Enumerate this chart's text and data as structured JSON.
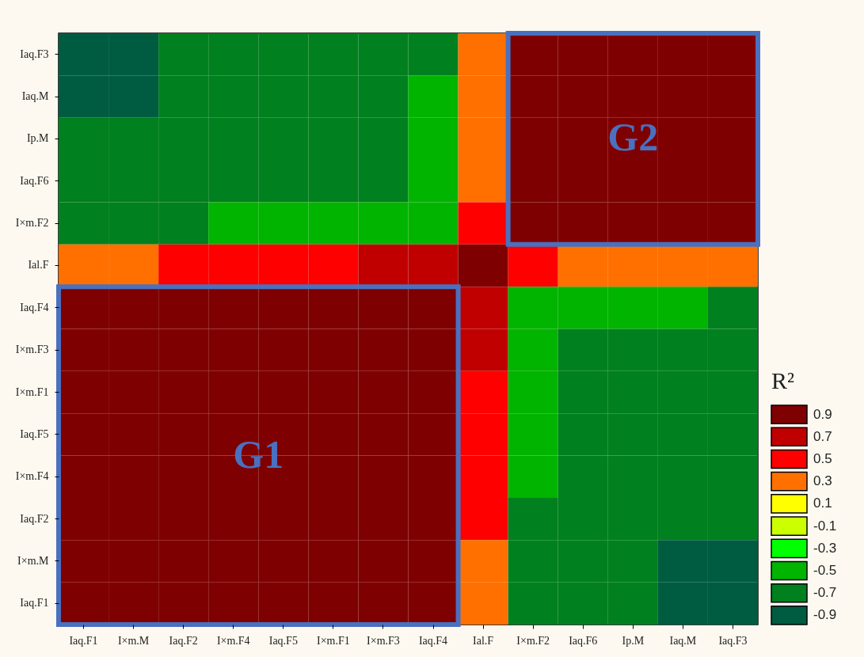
{
  "chart_data": {
    "type": "heatmap",
    "categories": [
      "Iaq.F1",
      "I×m.M",
      "Iaq.F2",
      "I×m.F4",
      "Iaq.F5",
      "I×m.F1",
      "I×m.F3",
      "Iaq.F4",
      "Ial.F",
      "I×m.F2",
      "Iaq.F6",
      "Ip.M",
      "Iaq.M",
      "Iaq.F3"
    ],
    "y_categories": [
      "Iaq.F3",
      "Iaq.M",
      "Ip.M",
      "Iaq.F6",
      "I×m.F2",
      "Ial.F",
      "Iaq.F4",
      "I×m.F3",
      "I×m.F1",
      "Iaq.F5",
      "I×m.F4",
      "Iaq.F2",
      "I×m.M",
      "Iaq.F1"
    ],
    "cells": [
      [
        -0.9,
        -0.9,
        -0.7,
        -0.7,
        -0.7,
        -0.7,
        -0.7,
        -0.7,
        0.3,
        0.9,
        0.9,
        0.9,
        0.9,
        0.9
      ],
      [
        -0.9,
        -0.9,
        -0.7,
        -0.7,
        -0.7,
        -0.7,
        -0.7,
        -0.5,
        0.3,
        0.9,
        0.9,
        0.9,
        0.9,
        0.9
      ],
      [
        -0.7,
        -0.7,
        -0.7,
        -0.7,
        -0.7,
        -0.7,
        -0.7,
        -0.5,
        0.3,
        0.9,
        0.9,
        0.9,
        0.9,
        0.9
      ],
      [
        -0.7,
        -0.7,
        -0.7,
        -0.7,
        -0.7,
        -0.7,
        -0.7,
        -0.5,
        0.3,
        0.9,
        0.9,
        0.9,
        0.9,
        0.9
      ],
      [
        -0.7,
        -0.7,
        -0.7,
        -0.5,
        -0.5,
        -0.5,
        -0.5,
        -0.5,
        0.5,
        0.9,
        0.9,
        0.9,
        0.9,
        0.9
      ],
      [
        0.3,
        0.3,
        0.5,
        0.5,
        0.5,
        0.5,
        0.7,
        0.7,
        0.9,
        0.5,
        0.3,
        0.3,
        0.3,
        0.3
      ],
      [
        0.9,
        0.9,
        0.9,
        0.9,
        0.9,
        0.9,
        0.9,
        0.9,
        0.7,
        -0.5,
        -0.5,
        -0.5,
        -0.5,
        -0.7
      ],
      [
        0.9,
        0.9,
        0.9,
        0.9,
        0.9,
        0.9,
        0.9,
        0.9,
        0.7,
        -0.5,
        -0.7,
        -0.7,
        -0.7,
        -0.7
      ],
      [
        0.9,
        0.9,
        0.9,
        0.9,
        0.9,
        0.9,
        0.9,
        0.9,
        0.5,
        -0.5,
        -0.7,
        -0.7,
        -0.7,
        -0.7
      ],
      [
        0.9,
        0.9,
        0.9,
        0.9,
        0.9,
        0.9,
        0.9,
        0.9,
        0.5,
        -0.5,
        -0.7,
        -0.7,
        -0.7,
        -0.7
      ],
      [
        0.9,
        0.9,
        0.9,
        0.9,
        0.9,
        0.9,
        0.9,
        0.9,
        0.5,
        -0.5,
        -0.7,
        -0.7,
        -0.7,
        -0.7
      ],
      [
        0.9,
        0.9,
        0.9,
        0.9,
        0.9,
        0.9,
        0.9,
        0.9,
        0.5,
        -0.7,
        -0.7,
        -0.7,
        -0.7,
        -0.7
      ],
      [
        0.9,
        0.9,
        0.9,
        0.9,
        0.9,
        0.9,
        0.9,
        0.9,
        0.3,
        -0.7,
        -0.7,
        -0.7,
        -0.9,
        -0.9
      ],
      [
        0.9,
        0.9,
        0.9,
        0.9,
        0.9,
        0.9,
        0.9,
        0.9,
        0.3,
        -0.7,
        -0.7,
        -0.7,
        -0.9,
        -0.9
      ]
    ],
    "clabel": "R²",
    "cticks": [
      0.9,
      0.7,
      0.5,
      0.3,
      0.1,
      -0.1,
      -0.3,
      -0.5,
      -0.7,
      -0.9
    ],
    "colors": [
      "#7f0000",
      "#c00000",
      "#ff0000",
      "#ff7000",
      "#ffff00",
      "#ccff00",
      "#00ff00",
      "#00b400",
      "#00801e",
      "#005c40"
    ],
    "annotations": [
      "G1",
      "G2"
    ]
  }
}
